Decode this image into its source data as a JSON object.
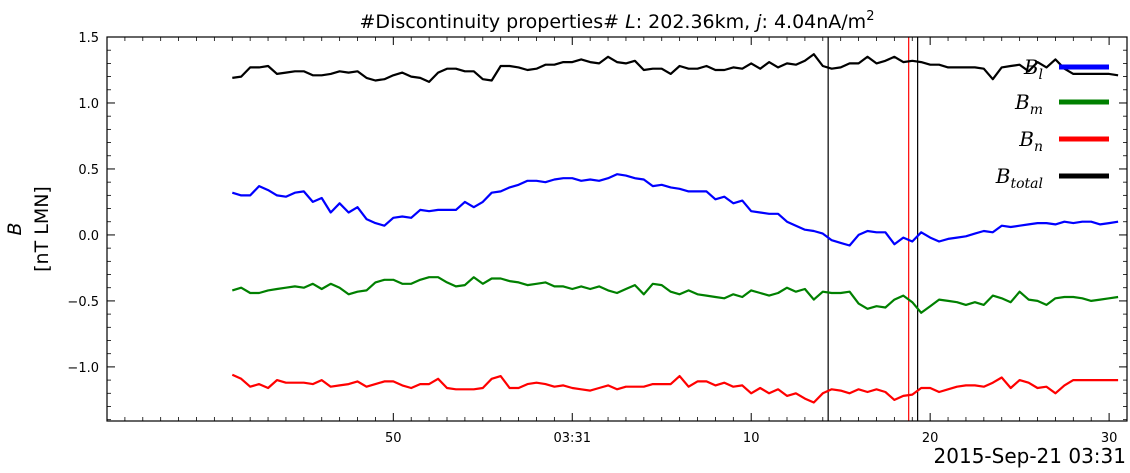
{
  "chart_data": {
    "type": "line",
    "title": "#Discontinuity properties# L: 202.36km, j: 4.04nA/m²",
    "title_parts": {
      "prefix": "#Discontinuity properties# ",
      "L_symbol": "L",
      "L_value": ": 202.36km, ",
      "j_symbol": "j",
      "j_value": ": 4.04nA/m",
      "j_exp": "2"
    },
    "ylabel": "B",
    "ylabel_unit": "[nT LMN]",
    "x_date_label": "2015-Sep-21 03:31",
    "x_unit": "seconds since 2015-09-21 03:30:41",
    "xlim": [
      -7.0,
      50.0
    ],
    "ylim": [
      -1.41,
      1.5
    ],
    "x_ticks": [
      {
        "x": 9,
        "label": "50"
      },
      {
        "x": 19,
        "label": "03:31"
      },
      {
        "x": 29,
        "label": "10"
      },
      {
        "x": 39,
        "label": "20"
      },
      {
        "x": 49,
        "label": "30"
      }
    ],
    "y_ticks": [
      {
        "y": 1.5,
        "label": "1.5"
      },
      {
        "y": 1.0,
        "label": "1.0"
      },
      {
        "y": 0.5,
        "label": "0.5"
      },
      {
        "y": 0.0,
        "label": "0.0"
      },
      {
        "y": -0.5,
        "label": "−0.5"
      },
      {
        "y": -1.0,
        "label": "−1.0"
      }
    ],
    "vlines": [
      {
        "x": 33.3,
        "color": "#000000"
      },
      {
        "x": 38.3,
        "color": "#000000"
      },
      {
        "x": 37.8,
        "color": "#ff0000"
      }
    ],
    "legend": {
      "placement": "top-right",
      "entries": [
        {
          "main": "B",
          "sub": "l",
          "color": "#0000ff"
        },
        {
          "main": "B",
          "sub": "m",
          "color": "#008000"
        },
        {
          "main": "B",
          "sub": "n",
          "color": "#ff0000"
        },
        {
          "main": "B",
          "sub": "total",
          "color": "#000000"
        }
      ]
    },
    "x": [
      0,
      0.5,
      1,
      1.5,
      2,
      2.5,
      3,
      3.5,
      4,
      4.5,
      5,
      5.5,
      6,
      6.5,
      7,
      7.5,
      8,
      8.5,
      9,
      9.5,
      10,
      10.5,
      11,
      11.5,
      12,
      12.5,
      13,
      13.5,
      14,
      14.5,
      15,
      15.5,
      16,
      16.5,
      17,
      17.5,
      18,
      18.5,
      19,
      19.5,
      20,
      20.5,
      21,
      21.5,
      22,
      22.5,
      23,
      23.5,
      24,
      24.5,
      25,
      25.5,
      26,
      26.5,
      27,
      27.5,
      28,
      28.5,
      29,
      29.5,
      30,
      30.5,
      31,
      31.5,
      32,
      32.5,
      33,
      33.5,
      34,
      34.5,
      35,
      35.5,
      36,
      36.5,
      37,
      37.5,
      38,
      38.5,
      39,
      39.5,
      40,
      40.5,
      41,
      41.5,
      42,
      42.5,
      43,
      43.5,
      44,
      44.5,
      45,
      45.5,
      46,
      46.5,
      47,
      47.5,
      48,
      48.5,
      49,
      49.5
    ],
    "series": [
      {
        "name": "B_l",
        "color": "#0000ff",
        "values": [
          0.32,
          0.3,
          0.3,
          0.37,
          0.34,
          0.3,
          0.29,
          0.32,
          0.33,
          0.25,
          0.28,
          0.17,
          0.24,
          0.17,
          0.21,
          0.12,
          0.09,
          0.07,
          0.13,
          0.14,
          0.13,
          0.19,
          0.18,
          0.19,
          0.19,
          0.19,
          0.25,
          0.21,
          0.25,
          0.32,
          0.33,
          0.36,
          0.38,
          0.41,
          0.41,
          0.4,
          0.42,
          0.43,
          0.43,
          0.41,
          0.42,
          0.41,
          0.43,
          0.46,
          0.45,
          0.43,
          0.42,
          0.37,
          0.38,
          0.36,
          0.35,
          0.33,
          0.33,
          0.33,
          0.27,
          0.29,
          0.24,
          0.26,
          0.18,
          0.17,
          0.16,
          0.16,
          0.1,
          0.07,
          0.04,
          0.03,
          0.01,
          -0.04,
          -0.06,
          -0.08,
          0.0,
          0.03,
          0.02,
          0.02,
          -0.07,
          -0.02,
          -0.05,
          0.02,
          -0.02,
          -0.05,
          -0.03,
          -0.02,
          -0.01,
          0.01,
          0.03,
          0.02,
          0.07,
          0.06,
          0.07,
          0.08,
          0.09,
          0.09,
          0.08,
          0.1,
          0.09,
          0.1,
          0.1,
          0.08,
          0.09,
          0.1
        ]
      },
      {
        "name": "B_m",
        "color": "#008000",
        "values": [
          -0.42,
          -0.4,
          -0.44,
          -0.44,
          -0.42,
          -0.41,
          -0.4,
          -0.39,
          -0.4,
          -0.37,
          -0.41,
          -0.37,
          -0.4,
          -0.45,
          -0.43,
          -0.42,
          -0.36,
          -0.34,
          -0.34,
          -0.37,
          -0.37,
          -0.34,
          -0.32,
          -0.32,
          -0.36,
          -0.39,
          -0.38,
          -0.32,
          -0.37,
          -0.33,
          -0.33,
          -0.35,
          -0.36,
          -0.38,
          -0.37,
          -0.36,
          -0.39,
          -0.39,
          -0.41,
          -0.39,
          -0.41,
          -0.39,
          -0.42,
          -0.44,
          -0.41,
          -0.38,
          -0.45,
          -0.37,
          -0.38,
          -0.43,
          -0.45,
          -0.42,
          -0.45,
          -0.46,
          -0.47,
          -0.48,
          -0.45,
          -0.47,
          -0.42,
          -0.44,
          -0.46,
          -0.44,
          -0.4,
          -0.43,
          -0.41,
          -0.49,
          -0.43,
          -0.44,
          -0.44,
          -0.43,
          -0.52,
          -0.56,
          -0.54,
          -0.55,
          -0.49,
          -0.46,
          -0.51,
          -0.59,
          -0.54,
          -0.49,
          -0.5,
          -0.51,
          -0.53,
          -0.51,
          -0.53,
          -0.46,
          -0.48,
          -0.51,
          -0.43,
          -0.49,
          -0.5,
          -0.53,
          -0.48,
          -0.47,
          -0.47,
          -0.48,
          -0.5,
          -0.49,
          -0.48,
          -0.47
        ]
      },
      {
        "name": "B_n",
        "color": "#ff0000",
        "values": [
          -1.06,
          -1.09,
          -1.15,
          -1.13,
          -1.16,
          -1.1,
          -1.12,
          -1.12,
          -1.12,
          -1.13,
          -1.1,
          -1.15,
          -1.14,
          -1.13,
          -1.11,
          -1.15,
          -1.13,
          -1.11,
          -1.11,
          -1.14,
          -1.16,
          -1.13,
          -1.13,
          -1.09,
          -1.16,
          -1.17,
          -1.17,
          -1.17,
          -1.16,
          -1.09,
          -1.07,
          -1.16,
          -1.16,
          -1.13,
          -1.12,
          -1.13,
          -1.15,
          -1.14,
          -1.16,
          -1.17,
          -1.18,
          -1.16,
          -1.14,
          -1.17,
          -1.15,
          -1.15,
          -1.15,
          -1.13,
          -1.13,
          -1.13,
          -1.07,
          -1.15,
          -1.11,
          -1.11,
          -1.14,
          -1.12,
          -1.15,
          -1.14,
          -1.2,
          -1.16,
          -1.2,
          -1.17,
          -1.22,
          -1.2,
          -1.24,
          -1.27,
          -1.2,
          -1.17,
          -1.18,
          -1.2,
          -1.17,
          -1.19,
          -1.17,
          -1.19,
          -1.25,
          -1.22,
          -1.21,
          -1.16,
          -1.16,
          -1.19,
          -1.17,
          -1.15,
          -1.14,
          -1.14,
          -1.15,
          -1.12,
          -1.08,
          -1.16,
          -1.1,
          -1.12,
          -1.16,
          -1.15,
          -1.2,
          -1.14,
          -1.1,
          -1.1,
          -1.1,
          -1.1,
          -1.1,
          -1.1
        ]
      },
      {
        "name": "B_total",
        "color": "#000000",
        "values": [
          1.19,
          1.2,
          1.27,
          1.27,
          1.28,
          1.22,
          1.23,
          1.24,
          1.24,
          1.21,
          1.21,
          1.22,
          1.24,
          1.23,
          1.24,
          1.19,
          1.17,
          1.18,
          1.21,
          1.23,
          1.2,
          1.19,
          1.16,
          1.23,
          1.26,
          1.26,
          1.24,
          1.24,
          1.18,
          1.17,
          1.28,
          1.28,
          1.27,
          1.25,
          1.26,
          1.29,
          1.29,
          1.31,
          1.31,
          1.33,
          1.31,
          1.3,
          1.35,
          1.31,
          1.3,
          1.32,
          1.25,
          1.26,
          1.26,
          1.22,
          1.28,
          1.26,
          1.26,
          1.28,
          1.25,
          1.25,
          1.27,
          1.26,
          1.3,
          1.26,
          1.31,
          1.27,
          1.3,
          1.29,
          1.32,
          1.37,
          1.28,
          1.26,
          1.27,
          1.3,
          1.3,
          1.35,
          1.3,
          1.32,
          1.35,
          1.31,
          1.32,
          1.31,
          1.29,
          1.29,
          1.27,
          1.27,
          1.27,
          1.27,
          1.26,
          1.18,
          1.27,
          1.28,
          1.29,
          1.24,
          1.31,
          1.27,
          1.33,
          1.26,
          1.22,
          1.22,
          1.22,
          1.22,
          1.22,
          1.21
        ]
      }
    ]
  }
}
